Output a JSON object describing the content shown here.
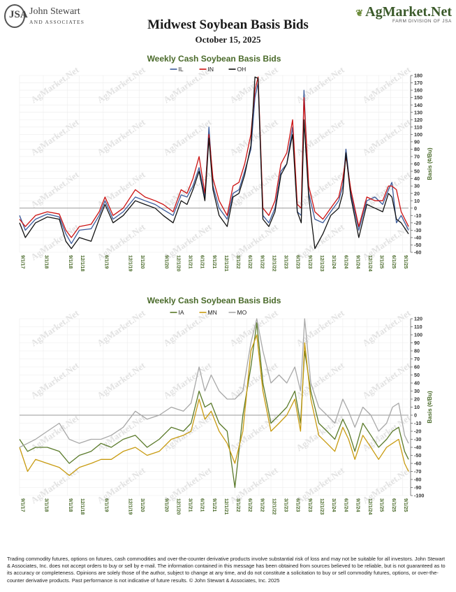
{
  "header": {
    "logo_left_name": "John Stewart",
    "logo_left_sub": "AND ASSOCIATES",
    "logo_right_name": "AgMarket.Net",
    "logo_right_sub": "FARM DIVISION OF JSA",
    "title": "Midwest Soybean Basis Bids",
    "date": "October 15, 2025"
  },
  "watermark_text": "AgMarket.Net",
  "colors": {
    "IL": "#3a5a9a",
    "IN": "#cc1111",
    "OH": "#111111",
    "IA": "#5a7a2a",
    "MN": "#c89b10",
    "MO": "#a8a8a8",
    "title_green": "#4a6a2a",
    "zero_line": "#999999"
  },
  "chart_data": [
    {
      "type": "line",
      "title": "Weekly Cash Soybean Basis Bids",
      "ylabel": "Basis (¢/Bu)",
      "ylim": [
        -60,
        180
      ],
      "yticks": [
        -60,
        -50,
        -40,
        -30,
        -20,
        -10,
        0,
        10,
        20,
        30,
        40,
        50,
        60,
        70,
        80,
        90,
        100,
        110,
        120,
        130,
        140,
        150,
        160,
        170,
        180
      ],
      "xlim": [
        "2017-09-01",
        "2025-10-15"
      ],
      "xticks": [
        "9/1/17",
        "3/1/18",
        "9/1/18",
        "12/1/18",
        "6/1/19",
        "12/1/19",
        "3/1/20",
        "9/1/20",
        "12/1/20",
        "3/1/21",
        "6/1/21",
        "9/1/21",
        "12/1/21",
        "3/1/22",
        "6/1/22",
        "9/1/22",
        "12/1/22",
        "3/1/23",
        "6/1/23",
        "9/1/23",
        "12/1/23",
        "3/1/24",
        "6/1/24",
        "9/1/24",
        "12/1/24",
        "3/1/25",
        "6/1/25",
        "9/1/25"
      ],
      "xtick_dates": [
        "2017-09-01",
        "2018-03-01",
        "2018-09-01",
        "2018-12-01",
        "2019-06-01",
        "2019-12-01",
        "2020-03-01",
        "2020-09-01",
        "2020-12-01",
        "2021-03-01",
        "2021-06-01",
        "2021-09-01",
        "2021-12-01",
        "2022-03-01",
        "2022-06-01",
        "2022-09-01",
        "2022-12-01",
        "2023-03-01",
        "2023-06-01",
        "2023-09-01",
        "2023-12-01",
        "2024-03-01",
        "2024-06-01",
        "2024-09-01",
        "2024-12-01",
        "2025-03-01",
        "2025-06-01",
        "2025-09-01"
      ],
      "grid": true,
      "legend": "top-center",
      "series": [
        {
          "name": "IL",
          "color": "#3a5a9a",
          "x": [
            "2017-09-01",
            "2017-10-15",
            "2018-01-01",
            "2018-04-01",
            "2018-07-01",
            "2018-08-20",
            "2018-10-01",
            "2018-12-01",
            "2019-03-01",
            "2019-05-01",
            "2019-06-15",
            "2019-08-15",
            "2019-11-01",
            "2020-02-01",
            "2020-04-15",
            "2020-07-01",
            "2020-09-01",
            "2020-11-15",
            "2021-01-15",
            "2021-03-01",
            "2021-04-15",
            "2021-06-01",
            "2021-07-15",
            "2021-08-15",
            "2021-09-15",
            "2021-11-01",
            "2022-01-01",
            "2022-02-15",
            "2022-04-01",
            "2022-05-15",
            "2022-07-01",
            "2022-08-01",
            "2022-08-25",
            "2022-10-01",
            "2022-11-15",
            "2023-01-01",
            "2023-02-15",
            "2023-04-01",
            "2023-05-15",
            "2023-06-20",
            "2023-07-20",
            "2023-08-10",
            "2023-09-15",
            "2023-11-01",
            "2024-01-01",
            "2024-03-01",
            "2024-05-01",
            "2024-06-01",
            "2024-06-25",
            "2024-08-01",
            "2024-10-01",
            "2024-12-01",
            "2025-02-01",
            "2025-04-01",
            "2025-05-15",
            "2025-06-10",
            "2025-07-15",
            "2025-08-20",
            "2025-10-15"
          ],
          "y": [
            -10,
            -30,
            -15,
            -8,
            -12,
            -35,
            -48,
            -30,
            -28,
            -10,
            10,
            -15,
            -5,
            15,
            10,
            5,
            -2,
            -10,
            18,
            15,
            30,
            55,
            15,
            110,
            30,
            0,
            -15,
            20,
            25,
            50,
            80,
            150,
            170,
            -10,
            -20,
            0,
            50,
            60,
            110,
            -5,
            -10,
            160,
            20,
            -15,
            -20,
            -5,
            10,
            30,
            80,
            20,
            -30,
            10,
            15,
            5,
            25,
            35,
            -20,
            -10,
            -30
          ]
        },
        {
          "name": "IN",
          "color": "#cc1111",
          "x": [
            "2017-09-01",
            "2017-10-15",
            "2018-01-01",
            "2018-04-01",
            "2018-07-01",
            "2018-08-20",
            "2018-10-01",
            "2018-12-01",
            "2019-03-01",
            "2019-05-01",
            "2019-06-15",
            "2019-08-15",
            "2019-11-01",
            "2020-02-01",
            "2020-04-15",
            "2020-07-01",
            "2020-09-01",
            "2020-11-15",
            "2021-01-15",
            "2021-03-01",
            "2021-04-15",
            "2021-06-01",
            "2021-07-15",
            "2021-08-15",
            "2021-09-15",
            "2021-11-01",
            "2022-01-01",
            "2022-02-15",
            "2022-04-01",
            "2022-05-15",
            "2022-07-01",
            "2022-08-01",
            "2022-08-25",
            "2022-10-01",
            "2022-11-15",
            "2023-01-01",
            "2023-02-15",
            "2023-04-01",
            "2023-05-15",
            "2023-06-20",
            "2023-07-20",
            "2023-08-10",
            "2023-09-15",
            "2023-11-01",
            "2024-01-01",
            "2024-03-01",
            "2024-05-01",
            "2024-06-01",
            "2024-06-25",
            "2024-08-01",
            "2024-10-01",
            "2024-12-01",
            "2025-02-01",
            "2025-04-01",
            "2025-05-15",
            "2025-06-10",
            "2025-07-15",
            "2025-08-20",
            "2025-10-15"
          ],
          "y": [
            -15,
            -25,
            -10,
            -5,
            -8,
            -30,
            -40,
            -25,
            -22,
            -5,
            15,
            -10,
            0,
            25,
            15,
            10,
            5,
            -5,
            25,
            20,
            40,
            70,
            20,
            100,
            40,
            10,
            -10,
            30,
            35,
            60,
            100,
            160,
            178,
            0,
            -10,
            10,
            60,
            75,
            120,
            5,
            0,
            150,
            30,
            -5,
            -15,
            0,
            15,
            40,
            70,
            25,
            -25,
            15,
            10,
            10,
            30,
            30,
            25,
            -5,
            -25
          ]
        },
        {
          "name": "OH",
          "color": "#111111",
          "x": [
            "2017-09-01",
            "2017-10-15",
            "2018-01-01",
            "2018-04-01",
            "2018-07-01",
            "2018-08-20",
            "2018-10-01",
            "2018-12-01",
            "2019-03-01",
            "2019-05-01",
            "2019-06-15",
            "2019-08-15",
            "2019-11-01",
            "2020-02-01",
            "2020-04-15",
            "2020-07-01",
            "2020-09-01",
            "2020-11-15",
            "2021-01-15",
            "2021-03-01",
            "2021-04-15",
            "2021-06-01",
            "2021-07-15",
            "2021-08-15",
            "2021-09-15",
            "2021-11-01",
            "2022-01-01",
            "2022-02-15",
            "2022-04-01",
            "2022-05-15",
            "2022-07-01",
            "2022-08-01",
            "2022-08-25",
            "2022-10-01",
            "2022-11-15",
            "2023-01-01",
            "2023-02-15",
            "2023-04-01",
            "2023-05-15",
            "2023-06-20",
            "2023-07-20",
            "2023-08-10",
            "2023-09-15",
            "2023-11-01",
            "2024-01-01",
            "2024-03-01",
            "2024-05-01",
            "2024-06-01",
            "2024-06-25",
            "2024-08-01",
            "2024-10-01",
            "2024-12-01",
            "2025-02-01",
            "2025-04-01",
            "2025-05-15",
            "2025-06-10",
            "2025-07-15",
            "2025-08-20",
            "2025-10-15"
          ],
          "y": [
            -20,
            -40,
            -20,
            -12,
            -15,
            -45,
            -55,
            -40,
            -45,
            -15,
            5,
            -20,
            -10,
            10,
            5,
            0,
            -10,
            -20,
            10,
            5,
            25,
            50,
            10,
            95,
            25,
            -10,
            -25,
            15,
            20,
            45,
            85,
            178,
            176,
            -15,
            -25,
            -5,
            45,
            60,
            100,
            -5,
            -20,
            120,
            15,
            -55,
            -35,
            -10,
            0,
            20,
            75,
            15,
            -40,
            5,
            0,
            -5,
            20,
            15,
            -15,
            -20,
            -35
          ]
        }
      ]
    },
    {
      "type": "line",
      "title": "Weekly Cash Soybean Basis Bids",
      "ylabel": "Basis (¢/Bu)",
      "ylim": [
        -100,
        120
      ],
      "yticks": [
        -100,
        -90,
        -80,
        -70,
        -60,
        -50,
        -40,
        -30,
        -20,
        -10,
        0,
        10,
        20,
        30,
        40,
        50,
        60,
        70,
        80,
        90,
        100,
        110,
        120
      ],
      "xlim": [
        "2017-09-01",
        "2025-10-15"
      ],
      "xticks": [
        "9/1/17",
        "3/1/18",
        "9/1/18",
        "12/1/18",
        "6/1/19",
        "12/1/19",
        "3/1/20",
        "9/1/20",
        "12/1/20",
        "3/1/21",
        "6/1/21",
        "9/1/21",
        "12/1/21",
        "3/1/22",
        "6/1/22",
        "9/1/22",
        "12/1/22",
        "3/1/23",
        "6/1/23",
        "9/1/23",
        "12/1/23",
        "3/1/24",
        "6/1/24",
        "9/1/24",
        "12/1/24",
        "3/1/25",
        "6/1/25",
        "9/1/25"
      ],
      "xtick_dates": [
        "2017-09-01",
        "2018-03-01",
        "2018-09-01",
        "2018-12-01",
        "2019-06-01",
        "2019-12-01",
        "2020-03-01",
        "2020-09-01",
        "2020-12-01",
        "2021-03-01",
        "2021-06-01",
        "2021-09-01",
        "2021-12-01",
        "2022-03-01",
        "2022-06-01",
        "2022-09-01",
        "2022-12-01",
        "2023-03-01",
        "2023-06-01",
        "2023-09-01",
        "2023-12-01",
        "2024-03-01",
        "2024-06-01",
        "2024-09-01",
        "2024-12-01",
        "2025-03-01",
        "2025-06-01",
        "2025-09-01"
      ],
      "grid": true,
      "legend": "top-center",
      "series": [
        {
          "name": "IA",
          "color": "#5a7a2a",
          "x": [
            "2017-09-01",
            "2017-11-01",
            "2018-01-01",
            "2018-04-01",
            "2018-07-01",
            "2018-09-15",
            "2018-12-01",
            "2019-03-01",
            "2019-05-15",
            "2019-08-01",
            "2019-11-01",
            "2020-02-01",
            "2020-05-01",
            "2020-08-01",
            "2020-11-01",
            "2021-02-01",
            "2021-04-01",
            "2021-06-01",
            "2021-07-15",
            "2021-09-01",
            "2021-11-01",
            "2022-01-01",
            "2022-03-01",
            "2022-05-01",
            "2022-07-01",
            "2022-08-15",
            "2022-10-01",
            "2022-12-01",
            "2023-02-01",
            "2023-04-01",
            "2023-06-01",
            "2023-07-15",
            "2023-08-15",
            "2023-10-01",
            "2023-12-01",
            "2024-02-01",
            "2024-04-01",
            "2024-06-01",
            "2024-07-15",
            "2024-09-01",
            "2024-11-01",
            "2025-01-01",
            "2025-03-01",
            "2025-05-01",
            "2025-06-15",
            "2025-08-01",
            "2025-09-15",
            "2025-10-15"
          ],
          "y": [
            -30,
            -45,
            -40,
            -40,
            -45,
            -60,
            -50,
            -45,
            -35,
            -40,
            -30,
            -25,
            -40,
            -30,
            -15,
            -20,
            -10,
            30,
            10,
            15,
            -10,
            -20,
            -90,
            0,
            60,
            115,
            40,
            -10,
            0,
            10,
            30,
            -10,
            80,
            30,
            -10,
            -20,
            -30,
            -5,
            -20,
            -45,
            -10,
            -25,
            -40,
            -30,
            -20,
            -15,
            -45,
            -55
          ]
        },
        {
          "name": "MN",
          "color": "#c89b10",
          "x": [
            "2017-09-01",
            "2017-11-01",
            "2018-01-01",
            "2018-04-01",
            "2018-07-01",
            "2018-09-15",
            "2018-12-01",
            "2019-03-01",
            "2019-05-15",
            "2019-08-01",
            "2019-11-01",
            "2020-02-01",
            "2020-05-01",
            "2020-08-01",
            "2020-11-01",
            "2021-02-01",
            "2021-04-01",
            "2021-06-01",
            "2021-07-15",
            "2021-09-01",
            "2021-11-01",
            "2022-01-01",
            "2022-03-01",
            "2022-05-01",
            "2022-07-01",
            "2022-08-15",
            "2022-10-01",
            "2022-12-01",
            "2023-02-01",
            "2023-04-01",
            "2023-06-01",
            "2023-07-15",
            "2023-08-15",
            "2023-10-01",
            "2023-12-01",
            "2024-02-01",
            "2024-04-01",
            "2024-06-01",
            "2024-07-15",
            "2024-09-01",
            "2024-11-01",
            "2025-01-01",
            "2025-03-01",
            "2025-05-01",
            "2025-06-15",
            "2025-08-01",
            "2025-09-15",
            "2025-10-15"
          ],
          "y": [
            -40,
            -70,
            -55,
            -60,
            -65,
            -75,
            -65,
            -60,
            -55,
            -55,
            -45,
            -40,
            -50,
            -45,
            -30,
            -25,
            -20,
            20,
            -5,
            5,
            -20,
            -35,
            -60,
            -20,
            80,
            100,
            30,
            -20,
            -10,
            0,
            20,
            -20,
            90,
            20,
            -25,
            -35,
            -45,
            -15,
            -30,
            -55,
            -25,
            -40,
            -55,
            -40,
            -35,
            -30,
            -60,
            -70
          ]
        },
        {
          "name": "MO",
          "color": "#a8a8a8",
          "x": [
            "2017-09-01",
            "2017-11-01",
            "2018-01-01",
            "2018-04-01",
            "2018-07-01",
            "2018-09-15",
            "2018-12-01",
            "2019-03-01",
            "2019-05-15",
            "2019-08-01",
            "2019-11-01",
            "2020-02-01",
            "2020-05-01",
            "2020-08-01",
            "2020-11-01",
            "2021-02-01",
            "2021-04-01",
            "2021-06-01",
            "2021-07-15",
            "2021-09-01",
            "2021-11-01",
            "2022-01-01",
            "2022-03-01",
            "2022-05-01",
            "2022-07-01",
            "2022-08-15",
            "2022-10-01",
            "2022-12-01",
            "2023-02-01",
            "2023-04-01",
            "2023-06-01",
            "2023-07-15",
            "2023-08-15",
            "2023-10-01",
            "2023-12-01",
            "2024-02-01",
            "2024-04-01",
            "2024-06-01",
            "2024-07-15",
            "2024-09-01",
            "2024-11-01",
            "2025-01-01",
            "2025-03-01",
            "2025-05-01",
            "2025-06-15",
            "2025-08-01",
            "2025-09-15",
            "2025-10-15"
          ],
          "y": [
            -40,
            -35,
            -30,
            -20,
            -10,
            -30,
            -35,
            -30,
            -30,
            -25,
            -15,
            5,
            -5,
            0,
            10,
            5,
            15,
            60,
            30,
            50,
            30,
            20,
            20,
            30,
            90,
            120,
            80,
            40,
            50,
            40,
            60,
            30,
            120,
            40,
            10,
            0,
            -10,
            20,
            5,
            -15,
            10,
            0,
            -20,
            -10,
            10,
            15,
            -25,
            -35
          ]
        }
      ]
    }
  ],
  "disclaimer": "Trading commodity futures, options on futures, cash commodities and over-the-counter derivative products involve substantial risk of loss and may not be suitable for all investors. John Stewart & Associates, Inc. does not accept orders to buy or sell by e-mail. The information contained in this message has been obtained from sources believed to be reliable, but is not guaranteed as to its accuracy or completeness. Opinions are solely those of the author, subject to change at any time, and do not constitute a solicitation to buy or sell commodity futures, options, or over-the-counter derivative products. Past performance is not indicative of future results. © John Stewart & Associates, Inc. 2025"
}
